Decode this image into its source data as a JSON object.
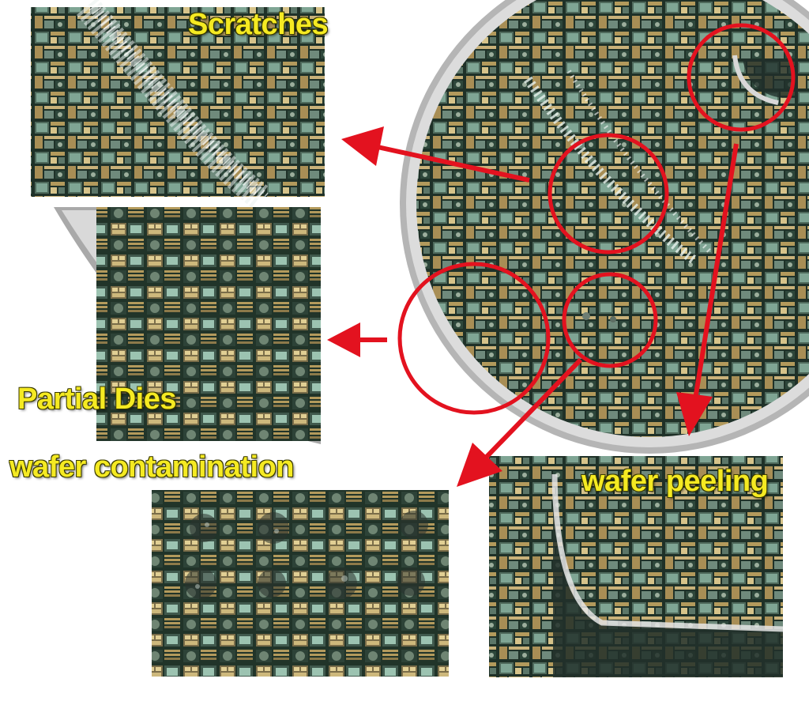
{
  "labels": {
    "scratches": "Scratches",
    "partial_dies": "Partial Dies",
    "wafer_contamination": "wafer contamination",
    "wafer_peeling": "wafer peeling"
  },
  "colors": {
    "label_text": "#f5ea22",
    "highlight_red": "#e3121f",
    "die_dark": "#1f3128",
    "die_gold": "#b39a5c",
    "die_teal": "#8fb8a6",
    "wafer_edge_gray": "#b5b5b5"
  }
}
